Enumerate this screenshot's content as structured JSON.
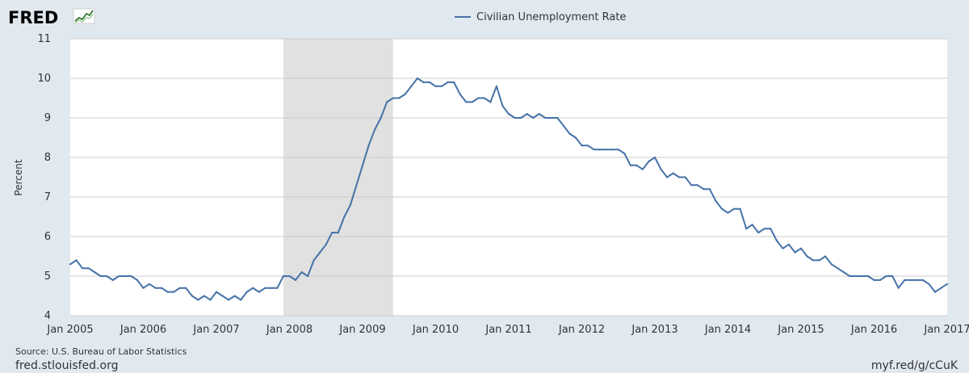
{
  "logo": {
    "text": "FRED",
    "icon": "fred-chart-logo-icon"
  },
  "footer": {
    "source": "Source: U.S. Bureau of Labor Statistics",
    "site": "fred.stlouisfed.org",
    "short_link": "myf.red/g/cCuK"
  },
  "colors": {
    "background": "#e1e9f0",
    "plot_background": "#ffffff",
    "line": "#4572a7",
    "recession": "#e1e1e1",
    "grid": "#cccccc"
  },
  "chart_data": {
    "type": "line",
    "title": "",
    "ylabel": "Percent",
    "xlabel": "",
    "ylim": [
      4,
      11
    ],
    "yticks": [
      4,
      5,
      6,
      7,
      8,
      9,
      10,
      11
    ],
    "xlim": [
      "2005-01",
      "2017-01"
    ],
    "x_tick_labels": [
      "Jan 2005",
      "Jan 2006",
      "Jan 2007",
      "Jan 2008",
      "Jan 2009",
      "Jan 2010",
      "Jan 2011",
      "Jan 2012",
      "Jan 2013",
      "Jan 2014",
      "Jan 2015",
      "Jan 2016",
      "Jan 2017"
    ],
    "grid": true,
    "legend_position": "top-center",
    "recession_shading": [
      {
        "start": "2007-12",
        "end": "2009-06"
      }
    ],
    "series": [
      {
        "name": "Civilian Unemployment Rate",
        "start": "2005-01",
        "frequency": "monthly",
        "values": [
          5.3,
          5.4,
          5.2,
          5.2,
          5.1,
          5.0,
          5.0,
          4.9,
          5.0,
          5.0,
          5.0,
          4.9,
          4.7,
          4.8,
          4.7,
          4.7,
          4.6,
          4.6,
          4.7,
          4.7,
          4.5,
          4.4,
          4.5,
          4.4,
          4.6,
          4.5,
          4.4,
          4.5,
          4.4,
          4.6,
          4.7,
          4.6,
          4.7,
          4.7,
          4.7,
          5.0,
          5.0,
          4.9,
          5.1,
          5.0,
          5.4,
          5.6,
          5.8,
          6.1,
          6.1,
          6.5,
          6.8,
          7.3,
          7.8,
          8.3,
          8.7,
          9.0,
          9.4,
          9.5,
          9.5,
          9.6,
          9.8,
          10.0,
          9.9,
          9.9,
          9.8,
          9.8,
          9.9,
          9.9,
          9.6,
          9.4,
          9.4,
          9.5,
          9.5,
          9.4,
          9.8,
          9.3,
          9.1,
          9.0,
          9.0,
          9.1,
          9.0,
          9.1,
          9.0,
          9.0,
          9.0,
          8.8,
          8.6,
          8.5,
          8.3,
          8.3,
          8.2,
          8.2,
          8.2,
          8.2,
          8.2,
          8.1,
          7.8,
          7.8,
          7.7,
          7.9,
          8.0,
          7.7,
          7.5,
          7.6,
          7.5,
          7.5,
          7.3,
          7.3,
          7.2,
          7.2,
          6.9,
          6.7,
          6.6,
          6.7,
          6.7,
          6.2,
          6.3,
          6.1,
          6.2,
          6.2,
          5.9,
          5.7,
          5.8,
          5.6,
          5.7,
          5.5,
          5.4,
          5.4,
          5.5,
          5.3,
          5.2,
          5.1,
          5.0,
          5.0,
          5.0,
          5.0,
          4.9,
          4.9,
          5.0,
          5.0,
          4.7,
          4.9,
          4.9,
          4.9,
          4.9,
          4.8,
          4.6,
          4.7,
          4.8
        ]
      }
    ]
  }
}
